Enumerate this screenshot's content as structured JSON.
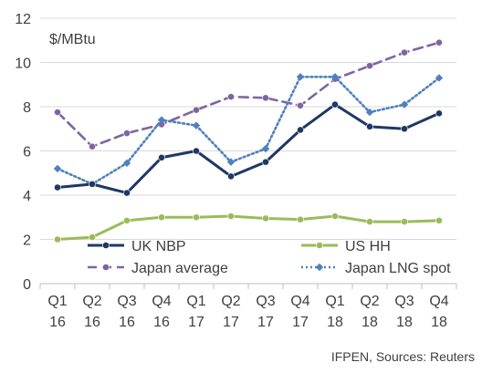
{
  "chart_data": {
    "type": "line",
    "unit_label": "$/MBtu",
    "source": "IFPEN, Sources: Reuters",
    "ylim": [
      0,
      12
    ],
    "yticks": [
      0,
      2,
      4,
      6,
      8,
      10,
      12
    ],
    "grid": true,
    "legend_position": "bottom (inside plot, two columns)",
    "categories": [
      {
        "top": "Q1",
        "bottom": "16"
      },
      {
        "top": "Q2",
        "bottom": "16"
      },
      {
        "top": "Q3",
        "bottom": "16"
      },
      {
        "top": "Q4",
        "bottom": "16"
      },
      {
        "top": "Q1",
        "bottom": "17"
      },
      {
        "top": "Q2",
        "bottom": "17"
      },
      {
        "top": "Q3",
        "bottom": "17"
      },
      {
        "top": "Q4",
        "bottom": "17"
      },
      {
        "top": "Q1",
        "bottom": "18"
      },
      {
        "top": "Q2",
        "bottom": "18"
      },
      {
        "top": "Q3",
        "bottom": "18"
      },
      {
        "top": "Q4",
        "bottom": "18"
      }
    ],
    "series": [
      {
        "name": "UK NBP",
        "color": "#1f3864",
        "style": "solid",
        "marker": "circle",
        "values": [
          4.35,
          4.5,
          4.1,
          5.7,
          6.0,
          4.85,
          5.5,
          6.95,
          8.1,
          7.1,
          7.0,
          7.7
        ]
      },
      {
        "name": "US HH",
        "color": "#9bbb59",
        "style": "solid",
        "marker": "circle",
        "values": [
          2.0,
          2.1,
          2.85,
          3.0,
          3.0,
          3.05,
          2.95,
          2.9,
          3.05,
          2.8,
          2.8,
          2.85
        ]
      },
      {
        "name": "Japan average",
        "color": "#8064a2",
        "style": "dashed",
        "marker": "circle",
        "values": [
          7.75,
          6.2,
          6.8,
          7.2,
          7.85,
          8.45,
          8.4,
          8.05,
          9.25,
          9.85,
          10.45,
          10.9
        ]
      },
      {
        "name": "Japan LNG spot",
        "color": "#4f81bd",
        "style": "dotted",
        "marker": "diamond",
        "values": [
          5.2,
          4.5,
          5.45,
          7.4,
          7.15,
          5.5,
          6.1,
          9.35,
          9.35,
          7.75,
          8.1,
          9.3
        ]
      }
    ]
  }
}
